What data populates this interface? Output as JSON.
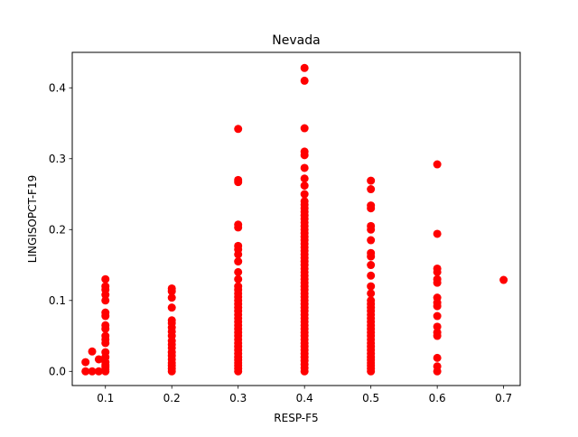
{
  "chart_data": {
    "type": "scatter",
    "title": "Nevada",
    "xlabel": "RESP-F5",
    "ylabel": "LINGISOPCT-F19",
    "xlim": [
      0.05,
      0.725
    ],
    "ylim": [
      -0.02,
      0.45
    ],
    "x_ticks": [
      0.1,
      0.2,
      0.3,
      0.4,
      0.5,
      0.6,
      0.7
    ],
    "x_tick_labels": [
      "0.1",
      "0.2",
      "0.3",
      "0.4",
      "0.5",
      "0.6",
      "0.7"
    ],
    "y_ticks": [
      0.0,
      0.1,
      0.2,
      0.3,
      0.4
    ],
    "y_tick_labels": [
      "0.0",
      "0.1",
      "0.2",
      "0.3",
      "0.4"
    ],
    "grid": false,
    "legend": "none",
    "marker_color": "#ff0000",
    "series": [
      {
        "points": [
          [
            0.07,
            0.0
          ],
          [
            0.07,
            0.013
          ],
          [
            0.08,
            0.0
          ],
          [
            0.08,
            0.028
          ],
          [
            0.09,
            0.0
          ],
          [
            0.09,
            0.017
          ],
          [
            0.1,
            0.0
          ],
          [
            0.1,
            0.003
          ],
          [
            0.1,
            0.006
          ],
          [
            0.1,
            0.009
          ],
          [
            0.1,
            0.013
          ],
          [
            0.1,
            0.02
          ],
          [
            0.1,
            0.027
          ],
          [
            0.1,
            0.04
          ],
          [
            0.1,
            0.045
          ],
          [
            0.1,
            0.05
          ],
          [
            0.1,
            0.06
          ],
          [
            0.1,
            0.065
          ],
          [
            0.1,
            0.078
          ],
          [
            0.1,
            0.083
          ],
          [
            0.1,
            0.1
          ],
          [
            0.1,
            0.108
          ],
          [
            0.1,
            0.115
          ],
          [
            0.1,
            0.12
          ],
          [
            0.1,
            0.13
          ],
          [
            0.2,
            0.0
          ],
          [
            0.2,
            0.004
          ],
          [
            0.2,
            0.008
          ],
          [
            0.2,
            0.012
          ],
          [
            0.2,
            0.017
          ],
          [
            0.2,
            0.022
          ],
          [
            0.2,
            0.027
          ],
          [
            0.2,
            0.033
          ],
          [
            0.2,
            0.038
          ],
          [
            0.2,
            0.043
          ],
          [
            0.2,
            0.05
          ],
          [
            0.2,
            0.056
          ],
          [
            0.2,
            0.062
          ],
          [
            0.2,
            0.068
          ],
          [
            0.2,
            0.072
          ],
          [
            0.2,
            0.09
          ],
          [
            0.2,
            0.104
          ],
          [
            0.2,
            0.113
          ],
          [
            0.2,
            0.117
          ],
          [
            0.3,
            0.0
          ],
          [
            0.3,
            0.004
          ],
          [
            0.3,
            0.008
          ],
          [
            0.3,
            0.012
          ],
          [
            0.3,
            0.016
          ],
          [
            0.3,
            0.02
          ],
          [
            0.3,
            0.025
          ],
          [
            0.3,
            0.03
          ],
          [
            0.3,
            0.035
          ],
          [
            0.3,
            0.04
          ],
          [
            0.3,
            0.045
          ],
          [
            0.3,
            0.05
          ],
          [
            0.3,
            0.055
          ],
          [
            0.3,
            0.06
          ],
          [
            0.3,
            0.065
          ],
          [
            0.3,
            0.07
          ],
          [
            0.3,
            0.075
          ],
          [
            0.3,
            0.08
          ],
          [
            0.3,
            0.085
          ],
          [
            0.3,
            0.09
          ],
          [
            0.3,
            0.095
          ],
          [
            0.3,
            0.1
          ],
          [
            0.3,
            0.105
          ],
          [
            0.3,
            0.11
          ],
          [
            0.3,
            0.115
          ],
          [
            0.3,
            0.12
          ],
          [
            0.3,
            0.13
          ],
          [
            0.3,
            0.14
          ],
          [
            0.3,
            0.155
          ],
          [
            0.3,
            0.165
          ],
          [
            0.3,
            0.172
          ],
          [
            0.3,
            0.177
          ],
          [
            0.3,
            0.203
          ],
          [
            0.3,
            0.207
          ],
          [
            0.3,
            0.267
          ],
          [
            0.3,
            0.27
          ],
          [
            0.3,
            0.342
          ],
          [
            0.4,
            0.0
          ],
          [
            0.4,
            0.005
          ],
          [
            0.4,
            0.01
          ],
          [
            0.4,
            0.015
          ],
          [
            0.4,
            0.02
          ],
          [
            0.4,
            0.025
          ],
          [
            0.4,
            0.03
          ],
          [
            0.4,
            0.035
          ],
          [
            0.4,
            0.04
          ],
          [
            0.4,
            0.045
          ],
          [
            0.4,
            0.05
          ],
          [
            0.4,
            0.055
          ],
          [
            0.4,
            0.06
          ],
          [
            0.4,
            0.065
          ],
          [
            0.4,
            0.07
          ],
          [
            0.4,
            0.075
          ],
          [
            0.4,
            0.08
          ],
          [
            0.4,
            0.085
          ],
          [
            0.4,
            0.09
          ],
          [
            0.4,
            0.095
          ],
          [
            0.4,
            0.1
          ],
          [
            0.4,
            0.105
          ],
          [
            0.4,
            0.11
          ],
          [
            0.4,
            0.115
          ],
          [
            0.4,
            0.12
          ],
          [
            0.4,
            0.125
          ],
          [
            0.4,
            0.13
          ],
          [
            0.4,
            0.135
          ],
          [
            0.4,
            0.14
          ],
          [
            0.4,
            0.145
          ],
          [
            0.4,
            0.15
          ],
          [
            0.4,
            0.155
          ],
          [
            0.4,
            0.16
          ],
          [
            0.4,
            0.165
          ],
          [
            0.4,
            0.17
          ],
          [
            0.4,
            0.175
          ],
          [
            0.4,
            0.18
          ],
          [
            0.4,
            0.185
          ],
          [
            0.4,
            0.19
          ],
          [
            0.4,
            0.195
          ],
          [
            0.4,
            0.2
          ],
          [
            0.4,
            0.205
          ],
          [
            0.4,
            0.21
          ],
          [
            0.4,
            0.215
          ],
          [
            0.4,
            0.22
          ],
          [
            0.4,
            0.225
          ],
          [
            0.4,
            0.23
          ],
          [
            0.4,
            0.235
          ],
          [
            0.4,
            0.24
          ],
          [
            0.4,
            0.25
          ],
          [
            0.4,
            0.262
          ],
          [
            0.4,
            0.272
          ],
          [
            0.4,
            0.287
          ],
          [
            0.4,
            0.305
          ],
          [
            0.4,
            0.31
          ],
          [
            0.4,
            0.343
          ],
          [
            0.4,
            0.41
          ],
          [
            0.4,
            0.428
          ],
          [
            0.5,
            0.0
          ],
          [
            0.5,
            0.004
          ],
          [
            0.5,
            0.008
          ],
          [
            0.5,
            0.012
          ],
          [
            0.5,
            0.016
          ],
          [
            0.5,
            0.02
          ],
          [
            0.5,
            0.025
          ],
          [
            0.5,
            0.03
          ],
          [
            0.5,
            0.035
          ],
          [
            0.5,
            0.04
          ],
          [
            0.5,
            0.045
          ],
          [
            0.5,
            0.05
          ],
          [
            0.5,
            0.055
          ],
          [
            0.5,
            0.06
          ],
          [
            0.5,
            0.065
          ],
          [
            0.5,
            0.07
          ],
          [
            0.5,
            0.075
          ],
          [
            0.5,
            0.08
          ],
          [
            0.5,
            0.085
          ],
          [
            0.5,
            0.09
          ],
          [
            0.5,
            0.095
          ],
          [
            0.5,
            0.1
          ],
          [
            0.5,
            0.11
          ],
          [
            0.5,
            0.12
          ],
          [
            0.5,
            0.135
          ],
          [
            0.5,
            0.15
          ],
          [
            0.5,
            0.162
          ],
          [
            0.5,
            0.167
          ],
          [
            0.5,
            0.185
          ],
          [
            0.5,
            0.2
          ],
          [
            0.5,
            0.205
          ],
          [
            0.5,
            0.23
          ],
          [
            0.5,
            0.234
          ],
          [
            0.5,
            0.257
          ],
          [
            0.5,
            0.269
          ],
          [
            0.6,
            0.0
          ],
          [
            0.6,
            0.007
          ],
          [
            0.6,
            0.019
          ],
          [
            0.6,
            0.05
          ],
          [
            0.6,
            0.055
          ],
          [
            0.6,
            0.063
          ],
          [
            0.6,
            0.078
          ],
          [
            0.6,
            0.092
          ],
          [
            0.6,
            0.097
          ],
          [
            0.6,
            0.104
          ],
          [
            0.6,
            0.125
          ],
          [
            0.6,
            0.13
          ],
          [
            0.6,
            0.14
          ],
          [
            0.6,
            0.145
          ],
          [
            0.6,
            0.194
          ],
          [
            0.6,
            0.292
          ],
          [
            0.7,
            0.129
          ]
        ]
      }
    ]
  }
}
